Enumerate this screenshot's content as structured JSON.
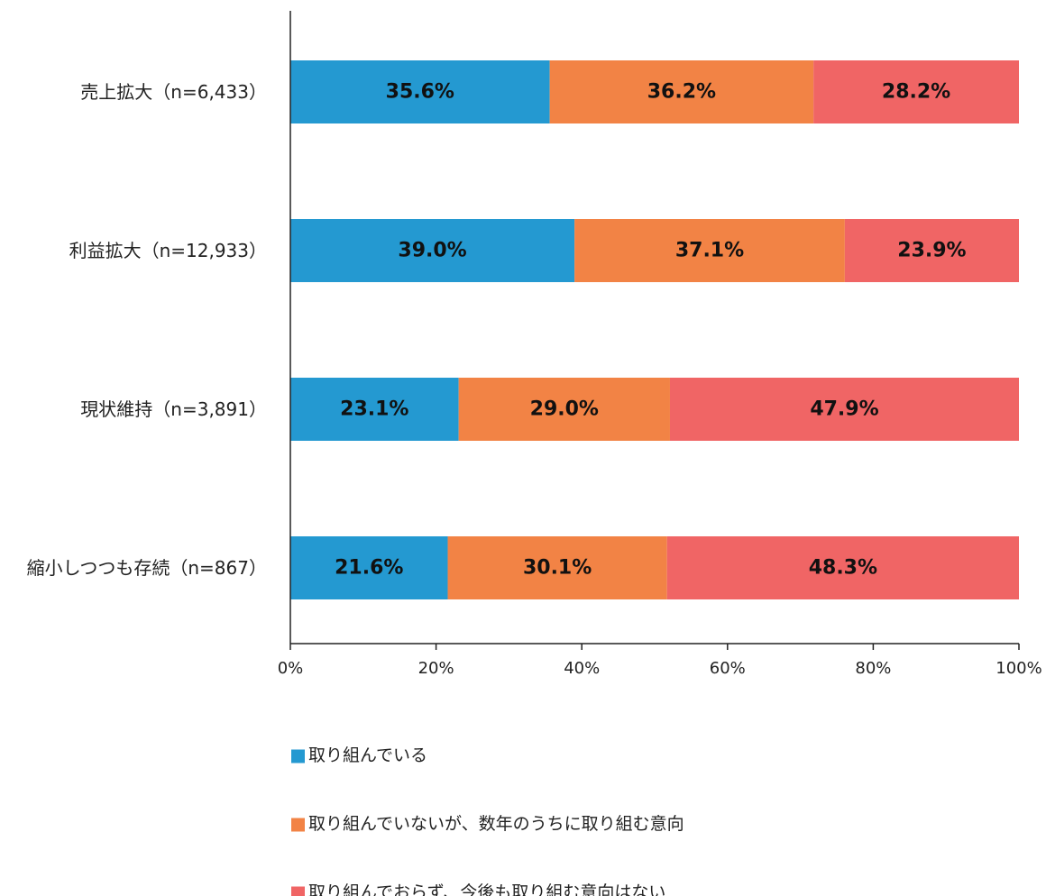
{
  "chart_data": {
    "type": "bar",
    "orientation": "horizontal",
    "stacked": true,
    "percent_stacked": true,
    "categories": [
      "売上拡大（n=6,433）",
      "利益拡大（n=12,933）",
      "現状維持（n=3,891）",
      "縮小しつつも存続（n=867）"
    ],
    "series": [
      {
        "name": "取り組んでいる",
        "color": "#2499d1",
        "values": [
          35.6,
          39.0,
          23.1,
          21.6
        ],
        "labels": [
          "35.6%",
          "39.0%",
          "23.1%",
          "21.6%"
        ]
      },
      {
        "name": "取り組んでいないが、数年のうちに取り組む意向",
        "color": "#f28345",
        "values": [
          36.2,
          37.1,
          29.0,
          30.1
        ],
        "labels": [
          "36.2%",
          "37.1%",
          "29.0%",
          "30.1%"
        ]
      },
      {
        "name": "取り組んでおらず、今後も取り組む意向はない",
        "color": "#f06565",
        "values": [
          28.2,
          23.9,
          47.9,
          48.3
        ],
        "labels": [
          "28.2%",
          "23.9%",
          "47.9%",
          "48.3%"
        ]
      }
    ],
    "xlim": [
      0,
      100
    ],
    "xticks": [
      0,
      20,
      40,
      60,
      80,
      100
    ],
    "xtick_labels": [
      "0%",
      "20%",
      "40%",
      "60%",
      "80%",
      "100%"
    ],
    "title": "",
    "xlabel": "",
    "ylabel": "",
    "grid": false,
    "legend": "bottom"
  }
}
